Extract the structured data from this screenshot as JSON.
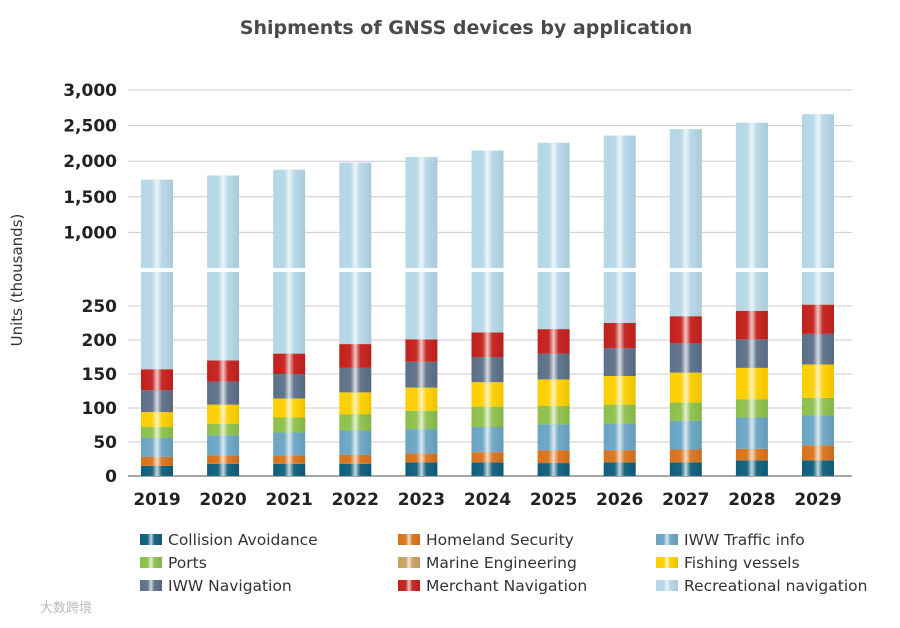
{
  "chart_data": {
    "type": "bar",
    "stacked": true,
    "title": "Shipments of GNSS devices by application",
    "xlabel": "",
    "ylabel": "Units (thousands)",
    "axis_break": true,
    "ylim_lower": [
      0,
      300
    ],
    "ylim_upper": [
      500,
      3000
    ],
    "yticks_lower": [
      "0",
      "50",
      "100",
      "150",
      "200",
      "250"
    ],
    "yticks_lower_values": [
      0,
      50,
      100,
      150,
      200,
      250
    ],
    "yticks_upper": [
      "1,000",
      "1,500",
      "2,000",
      "2,500",
      "3,000"
    ],
    "yticks_upper_values": [
      1000,
      1500,
      2000,
      2500,
      3000
    ],
    "grid": true,
    "legend_position": "bottom",
    "categories": [
      "2019",
      "2020",
      "2021",
      "2022",
      "2023",
      "2024",
      "2025",
      "2026",
      "2027",
      "2028",
      "2029"
    ],
    "series": [
      {
        "name": "Collision Avoidance",
        "color": "#0e5f7c",
        "values": [
          15,
          18,
          18,
          18,
          20,
          20,
          19,
          20,
          20,
          23,
          23
        ]
      },
      {
        "name": "Homeland Security",
        "color": "#d9731c",
        "values": [
          13,
          12,
          12,
          13,
          13,
          15,
          19,
          18,
          19,
          17,
          22
        ]
      },
      {
        "name": "IWW Traffic info",
        "color": "#6aa5c4",
        "values": [
          28,
          30,
          34,
          36,
          36,
          37,
          38,
          39,
          42,
          46,
          44
        ]
      },
      {
        "name": "Ports",
        "color": "#8dc04b",
        "values": [
          16,
          17,
          22,
          24,
          27,
          30,
          27,
          28,
          27,
          27,
          26
        ]
      },
      {
        "name": "Marine Engineering",
        "color": "#c9a063",
        "values": [
          0,
          0,
          0,
          0,
          0,
          0,
          0,
          0,
          0,
          0,
          0
        ]
      },
      {
        "name": "Fishing vessels",
        "color": "#fccf00",
        "values": [
          22,
          28,
          28,
          32,
          34,
          36,
          39,
          42,
          44,
          46,
          49
        ]
      },
      {
        "name": "IWW Navigation",
        "color": "#5c7088",
        "values": [
          32,
          34,
          36,
          36,
          38,
          37,
          38,
          41,
          43,
          42,
          45
        ]
      },
      {
        "name": "Merchant Navigation",
        "color": "#c4201c",
        "values": [
          31,
          31,
          30,
          35,
          33,
          36,
          36,
          37,
          40,
          42,
          43
        ]
      },
      {
        "name": "Recreational navigation",
        "color": "#b5d7e6",
        "values": [
          1583,
          1630,
          1700,
          1786,
          1859,
          1939,
          2044,
          2135,
          2215,
          2297,
          2408
        ]
      }
    ],
    "legend_order": [
      "Collision Avoidance",
      "Homeland Security",
      "IWW Traffic info",
      "Ports",
      "Marine Engineering",
      "Fishing vessels",
      "IWW Navigation",
      "Merchant Navigation",
      "Recreational navigation"
    ]
  },
  "watermark": "大数跨境"
}
